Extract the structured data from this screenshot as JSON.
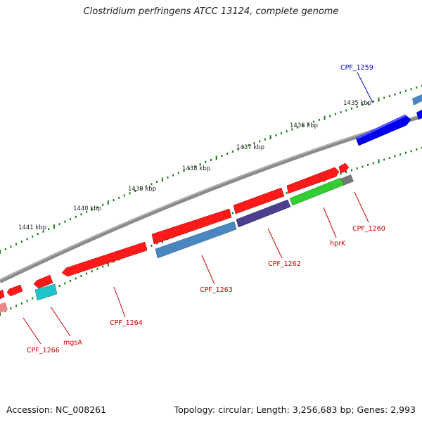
{
  "title": "Clostridium perfringens ATCC 13124, complete genome",
  "footer": {
    "accession": "Accession: NC_008261",
    "topology": "Topology: circular; Length: 3,256,683 bp; Genes: 2,993"
  },
  "scale_labels": [
    "1435 kbp",
    "1436 kbp",
    "1437 kbp",
    "1438 kbp",
    "1439 kbp",
    "1440 kbp",
    "1441 kbp"
  ],
  "genes": [
    {
      "name": "CPF_1259",
      "color": "#0000cc",
      "feature": "#0000ee"
    },
    {
      "name": "CPF_1260",
      "color": "#cc0000",
      "feature": "#ff1a1a"
    },
    {
      "name": "hprK",
      "color": "#cc0000",
      "feature": "#ff1a1a"
    },
    {
      "name": "CPF_1262",
      "color": "#cc0000",
      "feature": "#ff1a1a"
    },
    {
      "name": "CPF_1263",
      "color": "#cc0000",
      "feature": "#ff1a1a"
    },
    {
      "name": "CPF_1264",
      "color": "#cc0000",
      "feature": "#ff1a1a"
    },
    {
      "name": "mgsA",
      "color": "#cc0000",
      "feature": "#ff1a1a"
    },
    {
      "name": "CPF_1266",
      "color": "#cc0000",
      "feature": "#ff1a1a"
    }
  ],
  "colors": {
    "backbone": "#888888",
    "tick": "#1a7a1a",
    "cds_red": "#ff1a1a",
    "steelblue": "#4a86c0",
    "purple": "#4a3f8f",
    "green": "#33cc33",
    "gray": "#777777",
    "cyan": "#22c4cc",
    "blue": "#0000ee"
  }
}
